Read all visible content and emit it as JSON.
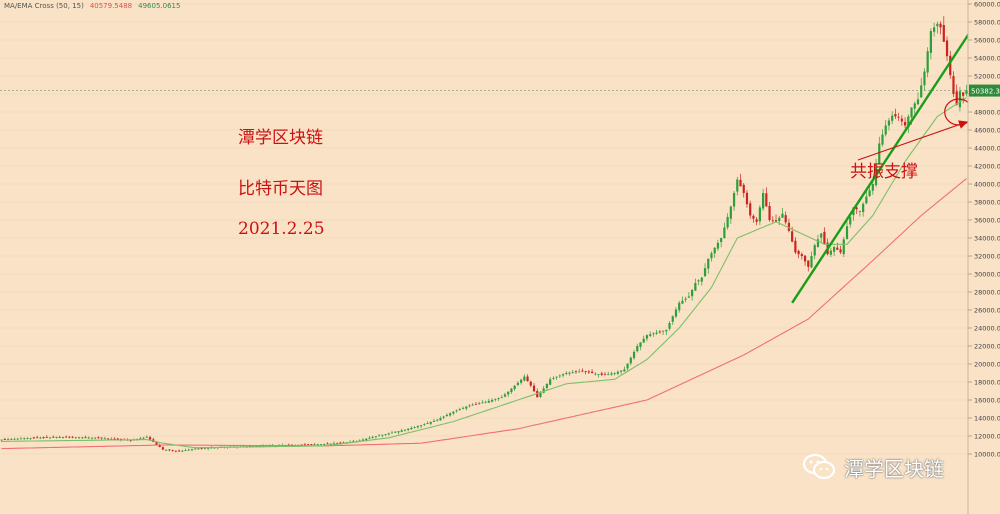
{
  "legend": {
    "label": "MA/EMA Cross (50, 15)",
    "ema_value": "40579.5488",
    "ma_value": "49605.0615"
  },
  "notes": {
    "title": "潭学区块链",
    "subtitle": "比特币天图",
    "date": "2021.2.25",
    "callout": "共振支撑"
  },
  "watermark": {
    "text": "潭学区块链",
    "icon": "wechat-logo-icon"
  },
  "price_tag": "50382.3",
  "colors": {
    "background": "#f9e2c6",
    "up": "#2e9e3a",
    "down": "#cc2222",
    "fast_ma": "#7fbf6a",
    "slow_ma": "#f07070",
    "trendline": "#1a9e1a",
    "annotation": "#cc1111"
  },
  "chart_data": {
    "type": "candlestick",
    "title": "比特币天图",
    "ylim": [
      8000,
      60000
    ],
    "yticks": [
      "60000.0000",
      "58000.0000",
      "56000.0000",
      "54000.0000",
      "52000.0000",
      "50000.0000",
      "48000.0000",
      "46000.0000",
      "44000.0000",
      "42000.0000",
      "40000.0000",
      "38000.0000",
      "36000.0000",
      "34000.0000",
      "32000.0000",
      "30000.0000",
      "28000.0000",
      "26000.0000",
      "24000.0000",
      "22000.0000",
      "20000.0000",
      "18000.0000",
      "16000.0000",
      "14000.0000",
      "12000.0000",
      "10000.0000"
    ],
    "close_anchors": [
      [
        0,
        11600
      ],
      [
        10,
        11800
      ],
      [
        20,
        11900
      ],
      [
        30,
        11800
      ],
      [
        40,
        11500
      ],
      [
        45,
        11900
      ],
      [
        50,
        10500
      ],
      [
        55,
        10300
      ],
      [
        60,
        10600
      ],
      [
        70,
        10800
      ],
      [
        80,
        10900
      ],
      [
        90,
        11000
      ],
      [
        100,
        11100
      ],
      [
        110,
        11400
      ],
      [
        115,
        11900
      ],
      [
        120,
        12300
      ],
      [
        125,
        12700
      ],
      [
        130,
        13200
      ],
      [
        135,
        13800
      ],
      [
        140,
        14700
      ],
      [
        145,
        15400
      ],
      [
        150,
        15800
      ],
      [
        155,
        16300
      ],
      [
        160,
        17900
      ],
      [
        162,
        18600
      ],
      [
        164,
        17600
      ],
      [
        166,
        16300
      ],
      [
        170,
        18300
      ],
      [
        175,
        19000
      ],
      [
        180,
        19200
      ],
      [
        186,
        18800
      ],
      [
        190,
        19000
      ],
      [
        193,
        19400
      ],
      [
        197,
        22000
      ],
      [
        200,
        23200
      ],
      [
        203,
        23500
      ],
      [
        206,
        23800
      ],
      [
        210,
        26800
      ],
      [
        213,
        27500
      ],
      [
        215,
        29000
      ],
      [
        217,
        29600
      ],
      [
        219,
        31700
      ],
      [
        221,
        32900
      ],
      [
        223,
        34000
      ],
      [
        226,
        37500
      ],
      [
        228,
        40500
      ],
      [
        230,
        39000
      ],
      [
        232,
        36500
      ],
      [
        234,
        35800
      ],
      [
        236,
        39000
      ],
      [
        238,
        36000
      ],
      [
        240,
        35800
      ],
      [
        242,
        36700
      ],
      [
        244,
        34800
      ],
      [
        246,
        32400
      ],
      [
        248,
        32000
      ],
      [
        250,
        30800
      ],
      [
        252,
        33200
      ],
      [
        254,
        34500
      ],
      [
        256,
        32200
      ],
      [
        258,
        33000
      ],
      [
        260,
        32400
      ],
      [
        262,
        35300
      ],
      [
        264,
        37400
      ],
      [
        266,
        37000
      ],
      [
        268,
        38600
      ],
      [
        270,
        40000
      ],
      [
        272,
        44500
      ],
      [
        274,
        46500
      ],
      [
        276,
        47600
      ],
      [
        278,
        47400
      ],
      [
        280,
        46500
      ],
      [
        282,
        48500
      ],
      [
        284,
        49400
      ],
      [
        286,
        52500
      ],
      [
        288,
        57000
      ],
      [
        290,
        57800
      ],
      [
        291,
        57400
      ],
      [
        293,
        54200
      ],
      [
        295,
        50000
      ],
      [
        296,
        48800
      ],
      [
        297,
        50300
      ],
      [
        298,
        49800
      ],
      [
        299,
        50400
      ]
    ],
    "fast_ma_anchors": [
      [
        0,
        11400
      ],
      [
        45,
        11600
      ],
      [
        50,
        11200
      ],
      [
        60,
        10700
      ],
      [
        100,
        10900
      ],
      [
        120,
        11800
      ],
      [
        140,
        13600
      ],
      [
        160,
        16000
      ],
      [
        175,
        17800
      ],
      [
        190,
        18300
      ],
      [
        200,
        20500
      ],
      [
        210,
        24000
      ],
      [
        220,
        28500
      ],
      [
        228,
        34000
      ],
      [
        240,
        35800
      ],
      [
        255,
        33300
      ],
      [
        262,
        33300
      ],
      [
        270,
        36500
      ],
      [
        280,
        42500
      ],
      [
        290,
        47500
      ],
      [
        299,
        49600
      ]
    ],
    "slow_ma_anchors": [
      [
        0,
        10600
      ],
      [
        50,
        11000
      ],
      [
        100,
        10900
      ],
      [
        130,
        11200
      ],
      [
        160,
        12800
      ],
      [
        200,
        16000
      ],
      [
        230,
        21000
      ],
      [
        250,
        25000
      ],
      [
        270,
        31500
      ],
      [
        285,
        36500
      ],
      [
        299,
        40600
      ]
    ],
    "trendline": {
      "from": [
        245,
        26800
      ],
      "to": [
        302,
        57900
      ]
    },
    "support_circle_at": [
      296,
      48000
    ],
    "horizontal_line": 50382
  }
}
